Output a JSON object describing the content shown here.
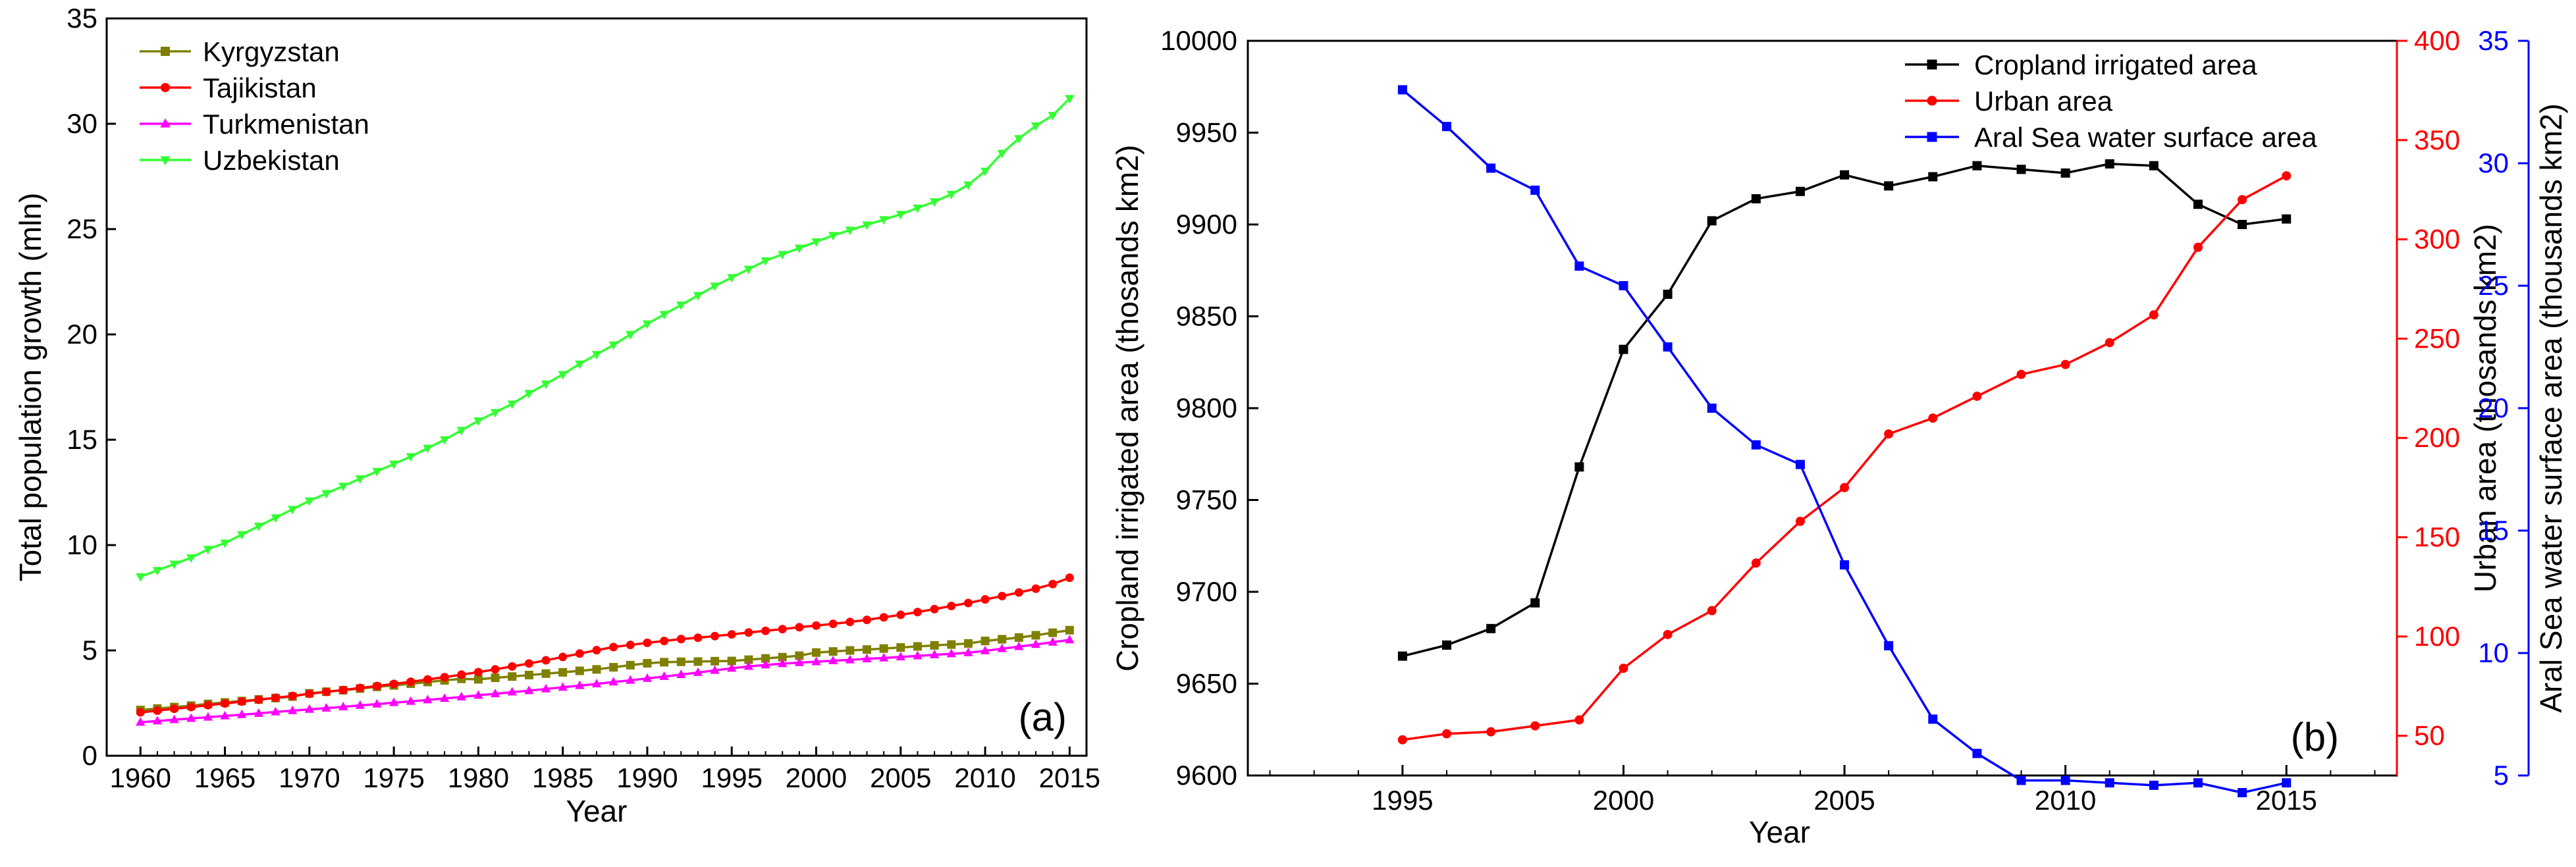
{
  "chart_data": [
    {
      "type": "line",
      "panel_label": "(a)",
      "title": "",
      "xlabel": "Year",
      "ylabel": "Total population growth (mln)",
      "xlim": [
        1958,
        2016
      ],
      "ylim": [
        0,
        35
      ],
      "xticks": [
        "1960",
        "1965",
        "1970",
        "1975",
        "1980",
        "1985",
        "1990",
        "1995",
        "2000",
        "2005",
        "2010",
        "2015"
      ],
      "yticks": [
        "0",
        "5",
        "10",
        "15",
        "20",
        "25",
        "30",
        "35"
      ],
      "legend_position": "top-left",
      "x": [
        1960,
        1961,
        1962,
        1963,
        1964,
        1965,
        1966,
        1967,
        1968,
        1969,
        1970,
        1971,
        1972,
        1973,
        1974,
        1975,
        1976,
        1977,
        1978,
        1979,
        1980,
        1981,
        1982,
        1983,
        1984,
        1985,
        1986,
        1987,
        1988,
        1989,
        1990,
        1991,
        1992,
        1993,
        1994,
        1995,
        1996,
        1997,
        1998,
        1999,
        2000,
        2001,
        2002,
        2003,
        2004,
        2005,
        2006,
        2007,
        2008,
        2009,
        2010,
        2011,
        2012,
        2013,
        2014,
        2015
      ],
      "series": [
        {
          "name": "Kyrgyzstan",
          "color": "#808000",
          "marker": "square",
          "values": [
            2.17,
            2.24,
            2.31,
            2.38,
            2.46,
            2.53,
            2.6,
            2.67,
            2.74,
            2.81,
            2.96,
            3.04,
            3.11,
            3.19,
            3.27,
            3.34,
            3.42,
            3.5,
            3.58,
            3.65,
            3.63,
            3.7,
            3.76,
            3.83,
            3.9,
            3.96,
            4.03,
            4.1,
            4.2,
            4.3,
            4.39,
            4.44,
            4.46,
            4.47,
            4.49,
            4.5,
            4.56,
            4.62,
            4.68,
            4.75,
            4.9,
            4.95,
            5.0,
            5.04,
            5.09,
            5.14,
            5.19,
            5.24,
            5.28,
            5.33,
            5.45,
            5.53,
            5.61,
            5.72,
            5.84,
            5.96
          ]
        },
        {
          "name": "Tajikistan",
          "color": "#ff0000",
          "marker": "circle",
          "values": [
            2.06,
            2.14,
            2.23,
            2.31,
            2.4,
            2.48,
            2.57,
            2.66,
            2.75,
            2.84,
            2.94,
            3.03,
            3.12,
            3.22,
            3.31,
            3.41,
            3.51,
            3.62,
            3.73,
            3.85,
            3.97,
            4.1,
            4.24,
            4.38,
            4.53,
            4.69,
            4.85,
            5.01,
            5.16,
            5.26,
            5.36,
            5.45,
            5.54,
            5.6,
            5.68,
            5.76,
            5.85,
            5.93,
            6.01,
            6.1,
            6.18,
            6.26,
            6.35,
            6.45,
            6.57,
            6.69,
            6.82,
            6.96,
            7.11,
            7.25,
            7.42,
            7.58,
            7.75,
            7.93,
            8.15,
            8.45
          ]
        },
        {
          "name": "Turkmenistan",
          "color": "#ff00ff",
          "marker": "triangle-up",
          "values": [
            1.59,
            1.65,
            1.71,
            1.77,
            1.83,
            1.89,
            1.95,
            2.01,
            2.08,
            2.14,
            2.2,
            2.26,
            2.32,
            2.39,
            2.45,
            2.52,
            2.58,
            2.65,
            2.72,
            2.79,
            2.87,
            2.94,
            3.02,
            3.09,
            3.17,
            3.25,
            3.33,
            3.41,
            3.5,
            3.58,
            3.67,
            3.76,
            3.85,
            3.95,
            4.05,
            4.15,
            4.24,
            4.31,
            4.37,
            4.42,
            4.46,
            4.51,
            4.55,
            4.6,
            4.64,
            4.69,
            4.74,
            4.79,
            4.84,
            4.89,
            4.98,
            5.08,
            5.18,
            5.28,
            5.39,
            5.5
          ]
        },
        {
          "name": "Uzbekistan",
          "color": "#33ff33",
          "marker": "triangle-down",
          "values": [
            8.5,
            8.8,
            9.1,
            9.4,
            9.8,
            10.1,
            10.5,
            10.9,
            11.3,
            11.7,
            12.1,
            12.45,
            12.8,
            13.15,
            13.5,
            13.85,
            14.2,
            14.6,
            15.0,
            15.45,
            15.9,
            16.3,
            16.7,
            17.2,
            17.65,
            18.1,
            18.6,
            19.05,
            19.5,
            20.0,
            20.5,
            20.95,
            21.4,
            21.85,
            22.3,
            22.7,
            23.1,
            23.5,
            23.8,
            24.1,
            24.4,
            24.7,
            24.95,
            25.2,
            25.45,
            25.7,
            26.0,
            26.3,
            26.65,
            27.1,
            27.75,
            28.6,
            29.3,
            29.9,
            30.4,
            31.2
          ]
        }
      ]
    },
    {
      "type": "line",
      "panel_label": "(b)",
      "title": "",
      "xlabel": "Year",
      "xlim": [
        1991.5,
        2017.5
      ],
      "xticks": [
        "1995",
        "2000",
        "2005",
        "2010",
        "2015"
      ],
      "legend_position": "top-right",
      "axes": [
        {
          "side": "left",
          "label": "Cropland irrigated area (thosands km2)",
          "color": "#000000",
          "ylim": [
            9600,
            10000
          ],
          "ticks": [
            "9600",
            "9650",
            "9700",
            "9750",
            "9800",
            "9850",
            "9900",
            "9950",
            "10000"
          ]
        },
        {
          "side": "right",
          "label": "Urban area (thosands km2)",
          "color": "#ff0000",
          "ylim": [
            30,
            400
          ],
          "ticks": [
            "50",
            "100",
            "150",
            "200",
            "250",
            "300",
            "350",
            "400"
          ]
        },
        {
          "side": "right-outer",
          "label": "Aral Sea water surface area (thousands km2)",
          "color": "#0000ff",
          "ylim": [
            5,
            35
          ],
          "ticks": [
            "5",
            "10",
            "15",
            "20",
            "25",
            "30",
            "35"
          ]
        }
      ],
      "x": [
        1995,
        1996,
        1997,
        1998,
        1999,
        2000,
        2001,
        2002,
        2003,
        2004,
        2005,
        2006,
        2007,
        2008,
        2009,
        2010,
        2011,
        2012,
        2013,
        2014,
        2015
      ],
      "series": [
        {
          "name": "Cropland irrigated area",
          "axis": 0,
          "color": "#000000",
          "marker": "square",
          "values": [
            9665,
            9671,
            9680,
            9694,
            9768,
            9832,
            9862,
            9902,
            9914,
            9918,
            9927,
            9921,
            9926,
            9932,
            9930,
            9928,
            9933,
            9932,
            9911,
            9900,
            9903
          ]
        },
        {
          "name": "Urban area",
          "axis": 1,
          "color": "#ff0000",
          "marker": "circle",
          "values": [
            48,
            51,
            52,
            55,
            58,
            84,
            101,
            113,
            137,
            158,
            175,
            202,
            210,
            221,
            232,
            237,
            248,
            262,
            296,
            320,
            332
          ]
        },
        {
          "name": "Aral Sea water surface area",
          "axis": 2,
          "color": "#0000ff",
          "marker": "square",
          "values": [
            33.0,
            31.5,
            29.8,
            28.9,
            25.8,
            25.0,
            22.5,
            20.0,
            18.5,
            17.7,
            13.6,
            10.3,
            7.3,
            5.9,
            4.8,
            4.8,
            4.7,
            4.6,
            4.7,
            4.3,
            4.7
          ]
        }
      ]
    }
  ]
}
